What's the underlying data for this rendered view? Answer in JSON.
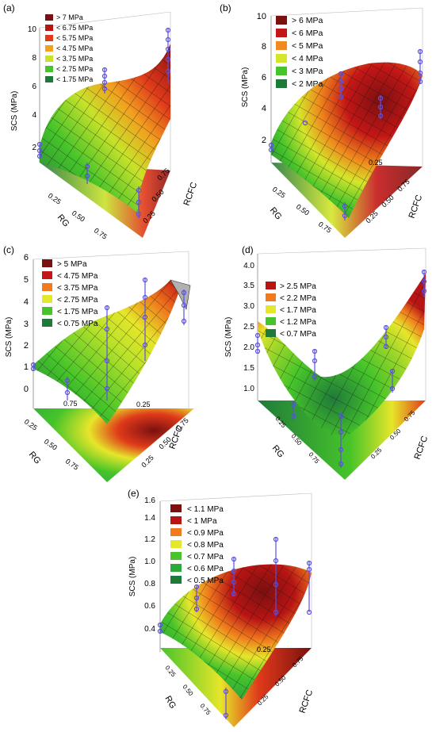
{
  "figure": {
    "panels": [
      {
        "id": "a",
        "panel_label": "(a)",
        "zlabel": "SCS (MPa)",
        "zticks": [
          "2",
          "4",
          "6",
          "8",
          "10"
        ],
        "axis_rg_label": "RG",
        "axis_rcfc_label": "RCFC",
        "rg_ticks": [
          "0.25",
          "0.50",
          "0.75"
        ],
        "rcfc_ticks": [
          "0.75",
          "0.50",
          "0.25"
        ],
        "top_tick": "",
        "legend": [
          {
            "label": "> 7 MPa",
            "color": "#7a1010"
          },
          {
            "label": "< 6.75 MPa",
            "color": "#b81414"
          },
          {
            "label": "< 5.75 MPa",
            "color": "#e03a1a"
          },
          {
            "label": "< 4.75 MPa",
            "color": "#f2a01e"
          },
          {
            "label": "< 3.75 MPa",
            "color": "#c8e22a"
          },
          {
            "label": "< 2.75 MPa",
            "color": "#46c42a"
          },
          {
            "label": "< 1.75 MPa",
            "color": "#1f7a3a"
          }
        ]
      },
      {
        "id": "b",
        "panel_label": "(b)",
        "zlabel": "SCS (MPa)",
        "zticks": [
          "2",
          "4",
          "6",
          "8",
          "10"
        ],
        "axis_rg_label": "RG",
        "axis_rcfc_label": "RCFC",
        "rg_ticks": [
          "0.25",
          "0.50",
          "0.75"
        ],
        "rcfc_ticks": [
          "0.75",
          "0.50",
          "0.25"
        ],
        "top_tick": "0.25",
        "legend": [
          {
            "label": "> 6 MPa",
            "color": "#7a1010"
          },
          {
            "label": "< 6 MPa",
            "color": "#c41616"
          },
          {
            "label": "< 5 MPa",
            "color": "#f08a1c"
          },
          {
            "label": "< 4 MPa",
            "color": "#d4e62a"
          },
          {
            "label": "< 3 MPa",
            "color": "#46c42a"
          },
          {
            "label": "< 2 MPa",
            "color": "#1f7a3a"
          }
        ]
      },
      {
        "id": "c",
        "panel_label": "(c)",
        "zlabel": "SCS (MPa)",
        "zticks": [
          "0",
          "1",
          "2",
          "3",
          "4",
          "5",
          "6"
        ],
        "axis_rg_label": "RG",
        "axis_rcfc_label": "RCFC",
        "rg_ticks": [
          "0.25",
          "0.50",
          "0.75"
        ],
        "rcfc_ticks": [
          "0.75",
          "0.50",
          "0.25"
        ],
        "top_tick": "0.25",
        "front_tick": "0.75",
        "legend": [
          {
            "label": "> 5 MPa",
            "color": "#7a1010"
          },
          {
            "label": "< 4.75 MPa",
            "color": "#c41616"
          },
          {
            "label": "< 3.75 MPa",
            "color": "#f07a1c"
          },
          {
            "label": "< 2.75 MPa",
            "color": "#e6e62a"
          },
          {
            "label": "< 1.75 MPa",
            "color": "#46c42a"
          },
          {
            "label": "< 0.75 MPa",
            "color": "#1f7a3a"
          }
        ]
      },
      {
        "id": "d",
        "panel_label": "(d)",
        "zlabel": "SCS (MPa)",
        "zticks": [
          "1.0",
          "1.5",
          "2.0",
          "2.5",
          "3.0",
          "3.5",
          "4.0"
        ],
        "axis_rg_label": "RG",
        "axis_rcfc_label": "RCFC",
        "rg_ticks": [
          "0.25",
          "0.50",
          "0.75"
        ],
        "rcfc_ticks": [
          "0.75",
          "0.50",
          "0.25"
        ],
        "top_tick": "",
        "legend": [
          {
            "label": "> 2.5 MPa",
            "color": "#b81414"
          },
          {
            "label": "< 2.2 MPa",
            "color": "#f07a1c"
          },
          {
            "label": "< 1.7 MPa",
            "color": "#e6e62a"
          },
          {
            "label": "< 1.2 MPa",
            "color": "#46c42a"
          },
          {
            "label": "< 0.7 MPa",
            "color": "#1f7a3a"
          }
        ]
      },
      {
        "id": "e",
        "panel_label": "(e)",
        "zlabel": "SCS (MPa)",
        "zticks": [
          "0.4",
          "0.6",
          "0.8",
          "1.0",
          "1.2",
          "1.4",
          "1.6"
        ],
        "axis_rg_label": "RG",
        "axis_rcfc_label": "RCFC",
        "rg_ticks": [
          "0.25",
          "0.50",
          "0.75"
        ],
        "rcfc_ticks": [
          "0.75",
          "0.50",
          "0.25"
        ],
        "top_tick": "0.25",
        "legend": [
          {
            "label": "< 1.1 MPa",
            "color": "#7a1010"
          },
          {
            "label": "< 1 MPa",
            "color": "#b81414"
          },
          {
            "label": "< 0.9 MPa",
            "color": "#f07a1c"
          },
          {
            "label": "< 0.8 MPa",
            "color": "#e6e62a"
          },
          {
            "label": "< 0.7 MPa",
            "color": "#46c42a"
          },
          {
            "label": "< 0.6 MPa",
            "color": "#2ea83a"
          },
          {
            "label": "< 0.5 MPa",
            "color": "#1f7a3a"
          }
        ]
      }
    ]
  },
  "chart_data": [
    {
      "type": "surface",
      "panel": "(a)",
      "zlabel": "SCS (MPa)",
      "zlim": [
        0,
        10
      ],
      "legend_position": "top-left",
      "levels": [
        "> 7 MPa",
        "< 6.75 MPa",
        "< 5.75 MPa",
        "< 4.75 MPa",
        "< 3.75 MPa",
        "< 2.75 MPa",
        "< 1.75 MPa"
      ]
    },
    {
      "type": "surface",
      "panel": "(b)",
      "zlabel": "SCS (MPa)",
      "zlim": [
        0,
        10
      ],
      "legend_position": "top-left",
      "levels": [
        "> 6 MPa",
        "< 6 MPa",
        "< 5 MPa",
        "< 4 MPa",
        "< 3 MPa",
        "< 2 MPa"
      ]
    },
    {
      "type": "surface",
      "panel": "(c)",
      "zlabel": "SCS (MPa)",
      "zlim": [
        -1,
        6
      ],
      "legend_position": "top-left",
      "levels": [
        "> 5 MPa",
        "< 4.75 MPa",
        "< 3.75 MPa",
        "< 2.75 MPa",
        "< 1.75 MPa",
        "< 0.75 MPa"
      ]
    },
    {
      "type": "surface",
      "panel": "(d)",
      "zlabel": "SCS (MPa)",
      "zlim": [
        0.5,
        4.0
      ],
      "legend_position": "top-left",
      "levels": [
        "> 2.5 MPa",
        "< 2.2 MPa",
        "< 1.7 MPa",
        "< 1.2 MPa",
        "< 0.7 MPa"
      ]
    },
    {
      "type": "surface",
      "panel": "(e)",
      "zlabel": "SCS (MPa)",
      "zlim": [
        0.3,
        1.6
      ],
      "legend_position": "top-left",
      "levels": [
        "< 1.1 MPa",
        "< 1 MPa",
        "< 0.9 MPa",
        "< 0.8 MPa",
        "< 0.7 MPa",
        "< 0.6 MPa",
        "< 0.5 MPa"
      ]
    }
  ]
}
